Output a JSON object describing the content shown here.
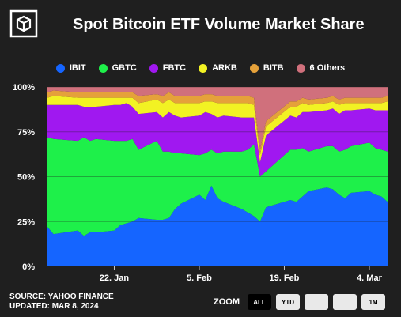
{
  "header": {
    "title": "Spot Bitcoin ETF Volume Market Share"
  },
  "legend": [
    {
      "name": "IBIT",
      "color": "#1565ff"
    },
    {
      "name": "GBTC",
      "color": "#1ef04a"
    },
    {
      "name": "FBTC",
      "color": "#a018f0"
    },
    {
      "name": "ARKB",
      "color": "#f2f223"
    },
    {
      "name": "BITB",
      "color": "#e5a13a"
    },
    {
      "name": "6 Others",
      "color": "#d0707c"
    }
  ],
  "footer": {
    "source_prefix": "SOURCE: ",
    "source_name": "YAHOO FINANCE",
    "updated": "UPDATED: MAR 8, 2024"
  },
  "zoom": {
    "label": "ZOOM",
    "buttons": [
      "ALL",
      "YTD",
      "",
      "",
      "1M"
    ],
    "active": "ALL"
  },
  "chart_data": {
    "type": "area",
    "stacked": true,
    "title": "Spot Bitcoin ETF Volume Market Share",
    "x": [
      "2024-01-11",
      "2024-01-12",
      "2024-01-16",
      "2024-01-17",
      "2024-01-18",
      "2024-01-19",
      "2024-01-22",
      "2024-01-23",
      "2024-01-24",
      "2024-01-25",
      "2024-01-26",
      "2024-01-29",
      "2024-01-30",
      "2024-01-31",
      "2024-02-01",
      "2024-02-02",
      "2024-02-05",
      "2024-02-06",
      "2024-02-07",
      "2024-02-08",
      "2024-02-09",
      "2024-02-12",
      "2024-02-13",
      "2024-02-14",
      "2024-02-15",
      "2024-02-16",
      "2024-02-20",
      "2024-02-21",
      "2024-02-22",
      "2024-02-23",
      "2024-02-26",
      "2024-02-27",
      "2024-02-28",
      "2024-02-29",
      "2024-03-01",
      "2024-03-04",
      "2024-03-05",
      "2024-03-06",
      "2024-03-07"
    ],
    "x_tick_labels": [
      "22. Jan",
      "5. Feb",
      "19. Feb",
      "4. Mar"
    ],
    "x_tick_values": [
      "2024-01-22",
      "2024-02-05",
      "2024-02-19",
      "2024-03-04"
    ],
    "y_tick_labels": [
      "0%",
      "25%",
      "50%",
      "75%",
      "100%"
    ],
    "ylim": [
      0,
      100
    ],
    "series": [
      {
        "name": "IBIT",
        "values": [
          22,
          18,
          20,
          17,
          19,
          19,
          20,
          23,
          24,
          25,
          27,
          26,
          26,
          27,
          32,
          35,
          40,
          37,
          45,
          38,
          36,
          32,
          30,
          28,
          25,
          33,
          37,
          36,
          39,
          42,
          44,
          43,
          40,
          38,
          41,
          42,
          40,
          39,
          36
        ]
      },
      {
        "name": "GBTC",
        "values": [
          50,
          53,
          50,
          55,
          51,
          52,
          50,
          47,
          46,
          46,
          38,
          44,
          38,
          37,
          31,
          28,
          22,
          26,
          20,
          25,
          28,
          32,
          35,
          40,
          25,
          20,
          28,
          29,
          27,
          22,
          23,
          24,
          24,
          27,
          26,
          27,
          26,
          26,
          28
        ]
      },
      {
        "name": "FBTC",
        "values": [
          18,
          19,
          20,
          17,
          19,
          18,
          20,
          20,
          21,
          18,
          20,
          16,
          19,
          22,
          21,
          20,
          22,
          23,
          20,
          20,
          20,
          19,
          18,
          15,
          8,
          20,
          19,
          18,
          20,
          22,
          20,
          21,
          21,
          22,
          20,
          19,
          21,
          22,
          23
        ]
      },
      {
        "name": "ARKB",
        "values": [
          4,
          5,
          4,
          5,
          5,
          5,
          4,
          4,
          3,
          5,
          6,
          7,
          8,
          7,
          7,
          8,
          7,
          6,
          7,
          8,
          7,
          8,
          8,
          7,
          4,
          5,
          5,
          6,
          5,
          4,
          4,
          4,
          5,
          4,
          4,
          3,
          4,
          4,
          5
        ]
      },
      {
        "name": "BITB",
        "values": [
          3,
          3,
          3,
          3,
          3,
          3,
          3,
          3,
          3,
          3,
          4,
          3,
          4,
          4,
          4,
          4,
          4,
          4,
          4,
          4,
          4,
          4,
          4,
          4,
          3,
          3,
          3,
          3,
          3,
          3,
          3,
          3,
          3,
          3,
          3,
          3,
          3,
          3,
          3
        ]
      },
      {
        "name": "6 Others",
        "values": [
          3,
          2,
          3,
          3,
          3,
          3,
          3,
          3,
          3,
          3,
          5,
          4,
          5,
          3,
          5,
          5,
          5,
          4,
          4,
          5,
          5,
          5,
          5,
          6,
          35,
          19,
          8,
          8,
          6,
          7,
          6,
          5,
          7,
          6,
          6,
          6,
          6,
          6,
          5
        ]
      }
    ],
    "grid": true
  }
}
